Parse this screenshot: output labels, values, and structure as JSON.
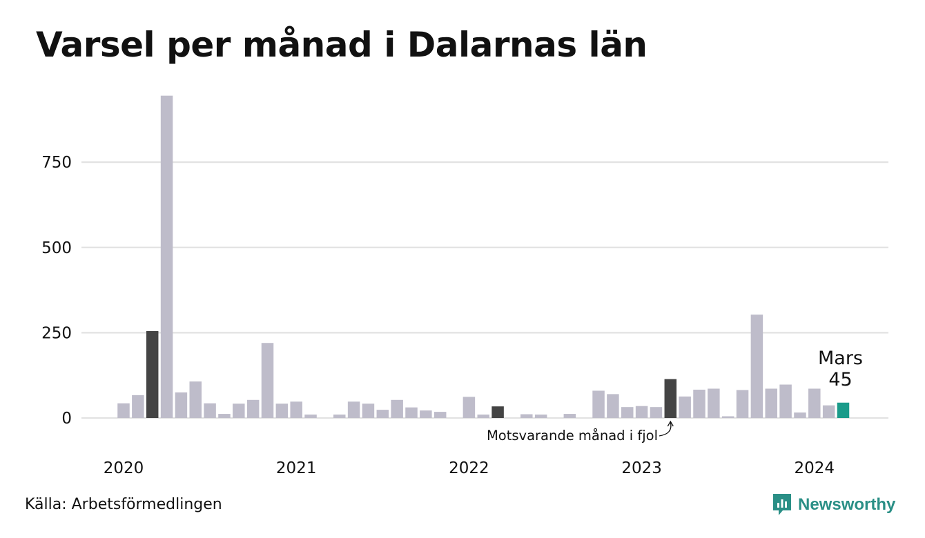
{
  "title": "Varsel per månad i Dalarnas län",
  "source": "Källa: Arbetsförmedlingen",
  "brand": {
    "name": "Newsworthy",
    "icon": "newsworthy-logo-icon"
  },
  "colors": {
    "bar": "#bebcca",
    "highlight": "#444444",
    "current": "#1a9b8a",
    "grid": "#e2e2e2",
    "brand": "#2a8f86"
  },
  "chart_data": {
    "type": "bar",
    "title": "Varsel per månad i Dalarnas län",
    "ylim": [
      0,
      950
    ],
    "yticks": [
      0,
      250,
      500,
      750
    ],
    "ytick_labels": [
      "0",
      "250",
      "500",
      "750"
    ],
    "xtick_labels": [
      "2020",
      "2021",
      "2022",
      "2023",
      "2024"
    ],
    "grid": true,
    "categories": [
      "2020-01",
      "2020-02",
      "2020-03",
      "2020-04",
      "2020-05",
      "2020-06",
      "2020-07",
      "2020-08",
      "2020-09",
      "2020-10",
      "2020-11",
      "2020-12",
      "2021-01",
      "2021-02",
      "2021-03",
      "2021-04",
      "2021-05",
      "2021-06",
      "2021-07",
      "2021-08",
      "2021-09",
      "2021-10",
      "2021-11",
      "2021-12",
      "2022-01",
      "2022-02",
      "2022-03",
      "2022-04",
      "2022-05",
      "2022-06",
      "2022-07",
      "2022-08",
      "2022-09",
      "2022-10",
      "2022-11",
      "2022-12",
      "2023-01",
      "2023-02",
      "2023-03",
      "2023-04",
      "2023-05",
      "2023-06",
      "2023-07",
      "2023-08",
      "2023-09",
      "2023-10",
      "2023-11",
      "2023-12",
      "2024-01",
      "2024-02",
      "2024-03"
    ],
    "values": [
      43,
      67,
      255,
      945,
      75,
      107,
      43,
      12,
      42,
      53,
      220,
      42,
      48,
      10,
      0,
      10,
      48,
      42,
      24,
      53,
      31,
      22,
      18,
      0,
      62,
      10,
      34,
      0,
      11,
      10,
      0,
      12,
      0,
      80,
      70,
      32,
      35,
      32,
      114,
      63,
      83,
      86,
      5,
      82,
      303,
      86,
      98,
      16,
      86,
      37,
      45
    ],
    "highlights": {
      "previous_year_same_month": [
        "2020-03",
        "2022-03",
        "2023-03"
      ],
      "current": "2024-03"
    },
    "annotations": [
      {
        "text": "Motsvarande månad i fjol",
        "target": "2023-03"
      },
      {
        "text": "Mars",
        "value_label": "45",
        "target": "2024-03"
      }
    ]
  }
}
